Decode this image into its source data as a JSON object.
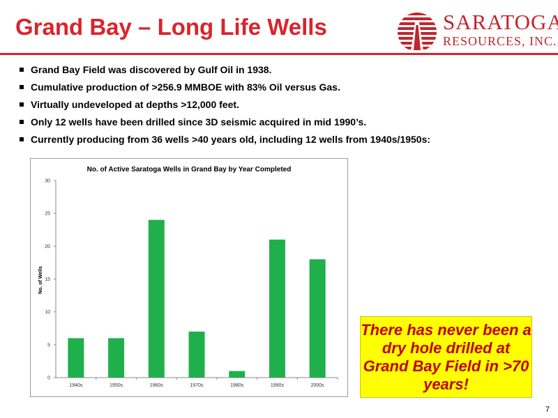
{
  "slide": {
    "title": "Grand Bay – Long Life Wells",
    "page_number": "7",
    "accent_color": "#d9242b"
  },
  "logo": {
    "name": "SARATOGA",
    "subtitle": "RESOURCES, INC.",
    "icon": "sunrise-derrick-logo"
  },
  "bullets": [
    "Grand Bay Field was discovered by Gulf Oil in 1938.",
    "Cumulative production of >256.9 MMBOE with 83% Oil versus Gas.",
    "Virtually undeveloped at depths >12,000 feet.",
    "Only 12 wells have been drilled since 3D seismic acquired in mid 1990’s.",
    "Currently producing from 36 wells >40 years old, including 12 wells from 1940s/1950s:"
  ],
  "chart_data": {
    "type": "bar",
    "title": "No. of Active Saratoga Wells in Grand Bay by Year Completed",
    "xlabel": "",
    "ylabel": "No. of Wells",
    "categories": [
      "1940s",
      "1950s",
      "1960s",
      "1970s",
      "1980s",
      "1990s",
      "2000s"
    ],
    "values": [
      6,
      6,
      24,
      7,
      1,
      21,
      18
    ],
    "ylim": [
      0,
      30
    ],
    "yticks": [
      0,
      5,
      10,
      15,
      20,
      25,
      30
    ],
    "grid": false,
    "legend": "none",
    "bar_color": "#1fb04c"
  },
  "callout": {
    "text": "There has never been a dry hole drilled at Grand Bay Field in >70 years!",
    "background": "#ffff00",
    "text_color": "#c00000"
  }
}
